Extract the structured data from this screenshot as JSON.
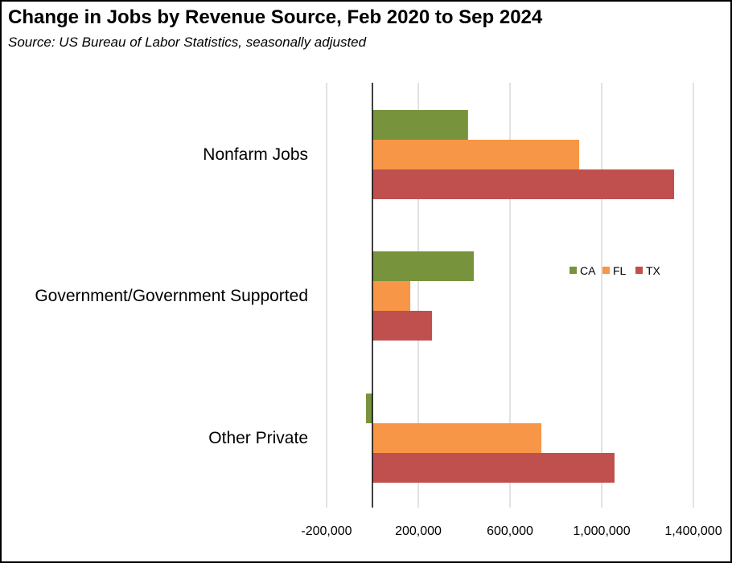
{
  "chart_data": {
    "type": "bar",
    "orientation": "horizontal",
    "title": "Change in Jobs by Revenue Source, Feb 2020 to Sep 2024",
    "subtitle": "Source:  US Bureau of Labor Statistics, seasonally adjusted",
    "categories": [
      "Nonfarm Jobs",
      "Government/Government Supported",
      "Other Private"
    ],
    "series": [
      {
        "name": "CA",
        "color": "#77933C",
        "values": [
          417000,
          442000,
          -28000
        ]
      },
      {
        "name": "FL",
        "color": "#F79646",
        "values": [
          902000,
          165000,
          737000
        ]
      },
      {
        "name": "TX",
        "color": "#C0504D",
        "values": [
          1316000,
          260000,
          1056000
        ]
      }
    ],
    "xlim": [
      -400000,
      1600000
    ],
    "xticks": [
      -200000,
      200000,
      600000,
      1000000,
      1400000
    ],
    "xtick_labels": [
      "-200,000",
      "200,000",
      "600,000",
      "1,000,000",
      "1,400,000"
    ],
    "grid": true,
    "legend_position": "right",
    "xlabel": "",
    "ylabel": ""
  }
}
